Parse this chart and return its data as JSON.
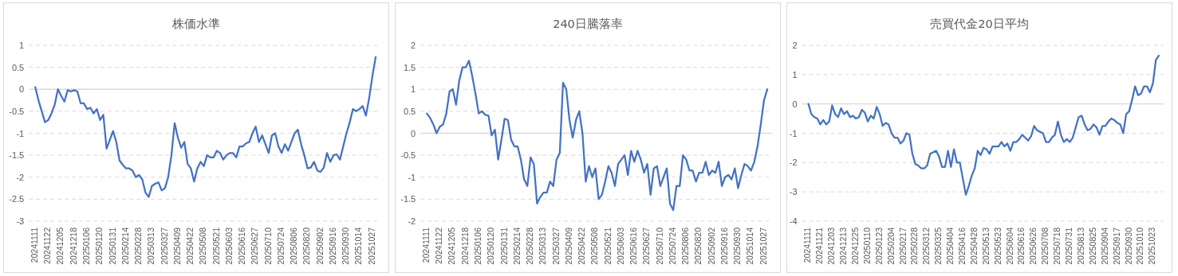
{
  "chart_data": [
    {
      "type": "line",
      "title": "株価水準",
      "color": "#4472c4",
      "grid": "y",
      "ylim": [
        -3,
        1
      ],
      "yticks": [
        -3,
        -2.5,
        -2,
        -1.5,
        -1,
        -0.5,
        0,
        0.5,
        1
      ],
      "categories": [
        "20241111",
        null,
        null,
        null,
        "20241122",
        null,
        null,
        null,
        "20241205",
        null,
        null,
        null,
        "20241218",
        null,
        null,
        null,
        "20250106",
        null,
        null,
        null,
        "20250120",
        null,
        null,
        null,
        "20250131",
        null,
        null,
        null,
        "20250214",
        null,
        null,
        null,
        "20250228",
        null,
        null,
        null,
        "20250313",
        null,
        null,
        null,
        "20250327",
        null,
        null,
        null,
        "20250409",
        null,
        null,
        null,
        "20250422",
        null,
        null,
        null,
        "20250508",
        null,
        null,
        null,
        "20250521",
        null,
        null,
        null,
        "20250603",
        null,
        null,
        null,
        "20250616",
        null,
        null,
        null,
        "20250627",
        null,
        null,
        null,
        "20250710",
        null,
        null,
        null,
        "20250724",
        null,
        null,
        null,
        "20250806",
        null,
        null,
        null,
        "20250820",
        null,
        null,
        null,
        "20250902",
        null,
        null,
        null,
        "20250916",
        null,
        null,
        null,
        "20250930",
        null,
        null,
        null,
        "20251014",
        null,
        null,
        null,
        "20251027",
        null
      ],
      "values": [
        0.05,
        -0.25,
        -0.5,
        -0.75,
        -0.7,
        -0.55,
        -0.35,
        0,
        -0.15,
        -0.28,
        -0.02,
        -0.05,
        -0.02,
        -0.05,
        -0.32,
        -0.32,
        -0.45,
        -0.42,
        -0.55,
        -0.45,
        -0.7,
        -0.58,
        -1.35,
        -1.15,
        -0.95,
        -1.2,
        -1.62,
        -1.72,
        -1.8,
        -1.8,
        -1.85,
        -2,
        -1.95,
        -2.05,
        -2.35,
        -2.45,
        -2.2,
        -2.15,
        -2.12,
        -2.3,
        -2.25,
        -2,
        -1.5,
        -0.77,
        -1.1,
        -1.33,
        -1.2,
        -1.7,
        -1.8,
        -2.1,
        -1.8,
        -1.65,
        -1.75,
        -1.5,
        -1.55,
        -1.55,
        -1.4,
        -1.45,
        -1.6,
        -1.5,
        -1.45,
        -1.45,
        -1.55,
        -1.3,
        -1.3,
        -1.23,
        -1.2,
        -1,
        -0.85,
        -1.2,
        -1.05,
        -1.25,
        -1.45,
        -1.05,
        -1,
        -1.3,
        -1.45,
        -1.25,
        -1.4,
        -1.2,
        -1,
        -0.92,
        -1.25,
        -1.5,
        -1.8,
        -1.78,
        -1.65,
        -1.85,
        -1.88,
        -1.78,
        -1.45,
        -1.65,
        -1.5,
        -1.48,
        -1.6,
        -1.3,
        -1,
        -0.75,
        -0.45,
        -0.5,
        -0.45,
        -0.38,
        -0.6,
        -0.2,
        0.3,
        0.73
      ]
    },
    {
      "type": "line",
      "title": "240日騰落率",
      "color": "#4472c4",
      "grid": "y",
      "ylim": [
        -2,
        2
      ],
      "yticks": [
        -2,
        -1.5,
        -1,
        -0.5,
        0,
        0.5,
        1,
        1.5,
        2
      ],
      "categories": [
        "20241111",
        null,
        null,
        null,
        "20241122",
        null,
        null,
        null,
        "20241205",
        null,
        null,
        null,
        "20241218",
        null,
        null,
        null,
        "20250106",
        null,
        null,
        null,
        "20250120",
        null,
        null,
        null,
        "20250131",
        null,
        null,
        null,
        "20250214",
        null,
        null,
        null,
        "20250228",
        null,
        null,
        null,
        "20250313",
        null,
        null,
        null,
        "20250327",
        null,
        null,
        null,
        "20250409",
        null,
        null,
        null,
        "20250422",
        null,
        null,
        null,
        "20250508",
        null,
        null,
        null,
        "20250521",
        null,
        null,
        null,
        "20250603",
        null,
        null,
        null,
        "20250616",
        null,
        null,
        null,
        "20250627",
        null,
        null,
        null,
        "20250710",
        null,
        null,
        null,
        "20250724",
        null,
        null,
        null,
        "20250806",
        null,
        null,
        null,
        "20250820",
        null,
        null,
        null,
        "20250902",
        null,
        null,
        null,
        "20250916",
        null,
        null,
        null,
        "20250930",
        null,
        null,
        null,
        "20251014",
        null,
        null,
        null,
        "20251027",
        null
      ],
      "values": [
        0.45,
        0.35,
        0.2,
        0,
        0.15,
        0.2,
        0.45,
        0.95,
        1,
        0.65,
        1.2,
        1.5,
        1.5,
        1.65,
        1.3,
        0.9,
        0.45,
        0.5,
        0.42,
        0.4,
        -0.05,
        0.08,
        -0.6,
        -0.15,
        0.33,
        0.3,
        -0.15,
        -0.3,
        -0.3,
        -0.6,
        -1.05,
        -1.2,
        -0.55,
        -0.7,
        -1.6,
        -1.45,
        -1.35,
        -1.35,
        -1.1,
        -1.2,
        -0.6,
        -0.45,
        1.15,
        1,
        0.3,
        -0.1,
        0.3,
        0.5,
        0,
        -1.1,
        -0.75,
        -1,
        -0.8,
        -1.5,
        -1.4,
        -1.1,
        -0.75,
        -0.9,
        -1.2,
        -0.7,
        -0.6,
        -0.5,
        -0.95,
        -0.4,
        -0.65,
        -0.4,
        -0.6,
        -0.9,
        -0.7,
        -1.4,
        -0.8,
        -0.75,
        -1.2,
        -1,
        -0.8,
        -1.6,
        -1.75,
        -1.2,
        -1.2,
        -0.5,
        -0.6,
        -0.85,
        -0.85,
        -1.1,
        -0.9,
        -0.9,
        -0.65,
        -0.95,
        -0.85,
        -0.9,
        -0.65,
        -1.2,
        -1,
        -0.95,
        -1.05,
        -0.8,
        -1.25,
        -0.95,
        -0.7,
        -0.75,
        -0.85,
        -0.65,
        -0.3,
        0.2,
        0.75,
        1
      ]
    },
    {
      "type": "line",
      "title": "売買代金20日平均",
      "color": "#4472c4",
      "grid": "y",
      "ylim": [
        -4,
        2
      ],
      "yticks": [
        -4,
        -3,
        -2,
        -1,
        0,
        1,
        2
      ],
      "categories": [
        "20241111",
        null,
        null,
        null,
        "20241121",
        null,
        null,
        null,
        "20241203",
        null,
        null,
        null,
        "20241213",
        null,
        null,
        null,
        "20241225",
        null,
        null,
        null,
        "20250110",
        null,
        null,
        null,
        "20250123",
        null,
        null,
        null,
        "20250204",
        null,
        null,
        null,
        "20250217",
        null,
        null,
        null,
        "20250228",
        null,
        null,
        null,
        "20250312",
        null,
        null,
        null,
        "20250325",
        null,
        null,
        null,
        "20250404",
        null,
        null,
        null,
        "20250416",
        null,
        null,
        null,
        "20250428",
        null,
        null,
        null,
        "20250513",
        null,
        null,
        null,
        "20250523",
        null,
        null,
        null,
        "20250604",
        null,
        null,
        null,
        "20250616",
        null,
        null,
        null,
        "20250626",
        null,
        null,
        null,
        "20250708",
        null,
        null,
        null,
        "20250718",
        null,
        null,
        null,
        "20250731",
        null,
        null,
        null,
        "20250813",
        null,
        null,
        null,
        "20250825",
        null,
        null,
        null,
        "20250904",
        null,
        null,
        null,
        "20250917",
        null,
        null,
        null,
        "20250930",
        null,
        null,
        null,
        "20251010",
        null,
        null,
        null,
        "20251023",
        null,
        null
      ],
      "values": [
        0,
        -0.35,
        -0.45,
        -0.5,
        -0.7,
        -0.55,
        -0.7,
        -0.6,
        -0.05,
        -0.35,
        -0.45,
        -0.15,
        -0.35,
        -0.25,
        -0.45,
        -0.4,
        -0.5,
        -0.45,
        -0.2,
        -0.3,
        -0.6,
        -0.4,
        -0.5,
        -0.1,
        -0.35,
        -0.75,
        -0.65,
        -0.7,
        -1,
        -1.15,
        -1.15,
        -1.35,
        -1.25,
        -1,
        -1.05,
        -1.7,
        -2.05,
        -2.1,
        -2.2,
        -2.2,
        -2.1,
        -1.7,
        -1.65,
        -1.6,
        -1.8,
        -2.15,
        -2.15,
        -1.6,
        -2.15,
        -1.55,
        -2,
        -2,
        -2.55,
        -3.1,
        -2.8,
        -2.45,
        -2.2,
        -1.6,
        -1.75,
        -1.5,
        -1.55,
        -1.7,
        -1.45,
        -1.45,
        -1.45,
        -1.3,
        -1.45,
        -1.35,
        -1.6,
        -1.3,
        -1.3,
        -1.2,
        -1.05,
        -1.15,
        -1.25,
        -1.1,
        -0.75,
        -0.9,
        -0.95,
        -1,
        -1.3,
        -1.3,
        -1.15,
        -1.05,
        -0.6,
        -1.05,
        -1.3,
        -1.2,
        -1.3,
        -1.15,
        -0.8,
        -0.45,
        -0.4,
        -0.7,
        -0.9,
        -0.85,
        -0.7,
        -0.8,
        -1.05,
        -0.75,
        -0.75,
        -0.6,
        -0.5,
        -0.55,
        -0.65,
        -0.7,
        -1,
        -0.35,
        -0.25,
        0.15,
        0.6,
        0.3,
        0.35,
        0.6,
        0.6,
        0.4,
        0.7,
        1.5,
        1.65
      ]
    }
  ]
}
